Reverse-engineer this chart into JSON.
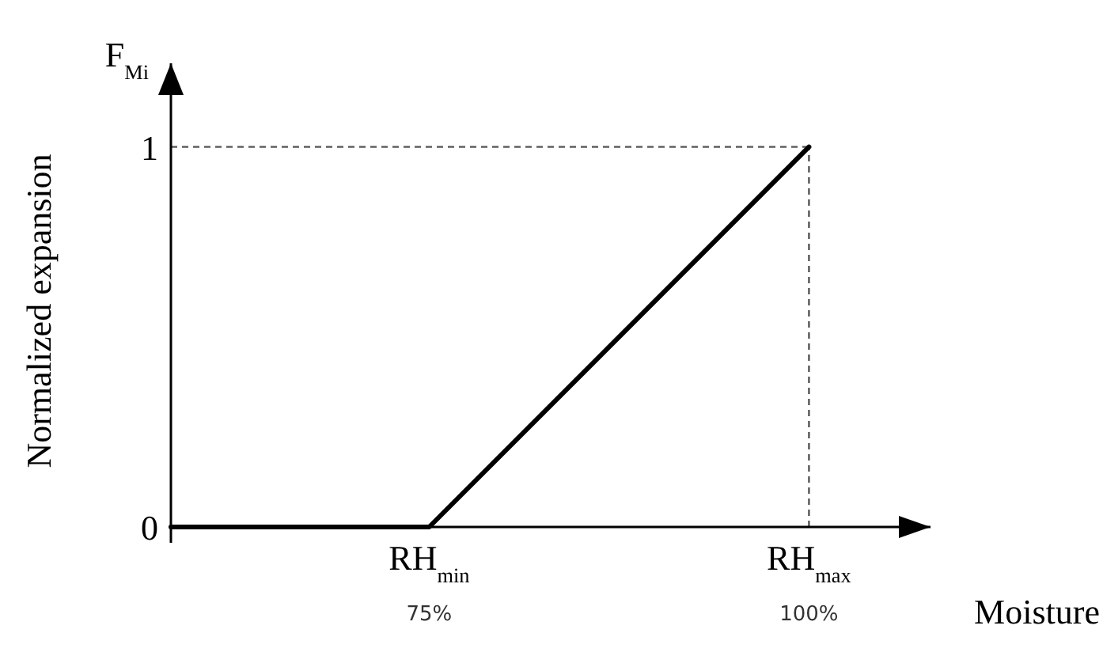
{
  "chart_data": {
    "type": "line",
    "xlabel": "Moisture",
    "ylabel": "Normalized expansion",
    "annotations": [
      "F$_{Mi}$"
    ],
    "x": [
      58,
      75,
      100
    ],
    "series": [
      {
        "color": "#000000",
        "values": [
          0,
          0,
          1
        ]
      }
    ],
    "xlim": [
      58,
      108
    ],
    "ylim": [
      0,
      1.22
    ],
    "xticks": [
      {
        "value": 75,
        "label": "RH$_{min}$\n75%"
      },
      {
        "value": 100,
        "label": "RH$_{max}$\n100%"
      }
    ],
    "yticks": [
      0,
      1
    ],
    "ref_lines": [
      {
        "axis": "y",
        "value": 1,
        "line_style": "dashed",
        "color": "#555555"
      },
      {
        "axis": "x",
        "value": 100,
        "line_style": "dashed",
        "color": "#555555"
      }
    ],
    "grid": false,
    "marker": "none",
    "line_style": "solid"
  }
}
